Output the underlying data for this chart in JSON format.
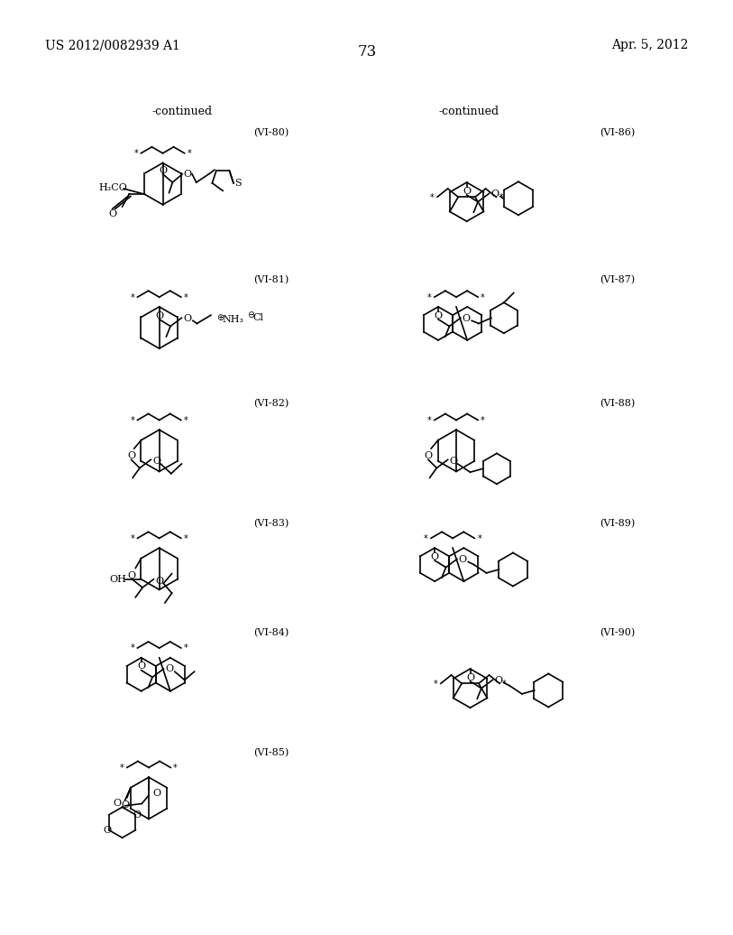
{
  "title_left": "US 2012/0082939 A1",
  "title_right": "Apr. 5, 2012",
  "page_number": "73",
  "background_color": "#ffffff",
  "text_color": "#000000",
  "continued_left": "-continued",
  "continued_right": "-continued"
}
